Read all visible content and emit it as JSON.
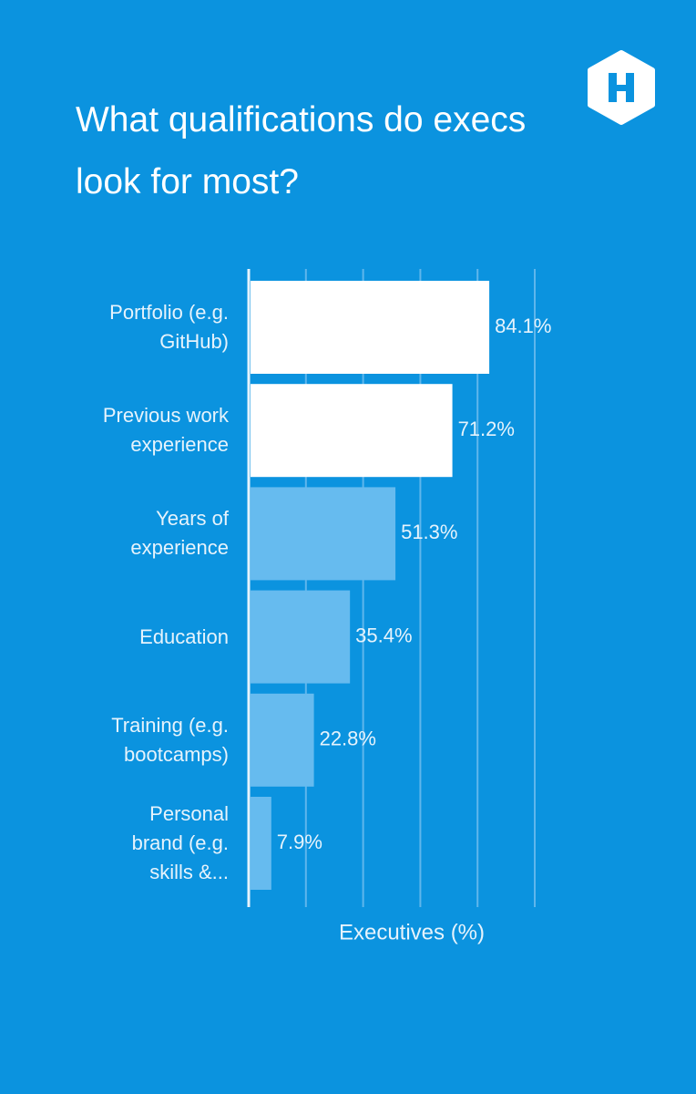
{
  "chart_data": {
    "type": "bar",
    "orientation": "horizontal",
    "title": "What qualifications do execs look for most?",
    "categories": [
      "Portfolio (e.g.\nGitHub)",
      "Previous work\nexperience",
      "Years of\nexperience",
      "Education",
      "Training (e.g.\nbootcamps)",
      "Personal\nbrand (e.g.\nskills &..."
    ],
    "values": [
      84.1,
      71.2,
      51.3,
      35.4,
      22.8,
      7.9
    ],
    "value_labels": [
      "84.1%",
      "71.2%",
      "51.3%",
      "35.4%",
      "22.8%",
      "7.9%"
    ],
    "colors": [
      "#ffffff",
      "#ffffff",
      "#66bbef",
      "#66bbef",
      "#66bbef",
      "#66bbef"
    ],
    "xlabel": "Executives (%)",
    "xlim": [
      0,
      100
    ],
    "xticks": [
      0,
      20,
      40,
      60,
      80,
      100
    ],
    "grid": true
  }
}
